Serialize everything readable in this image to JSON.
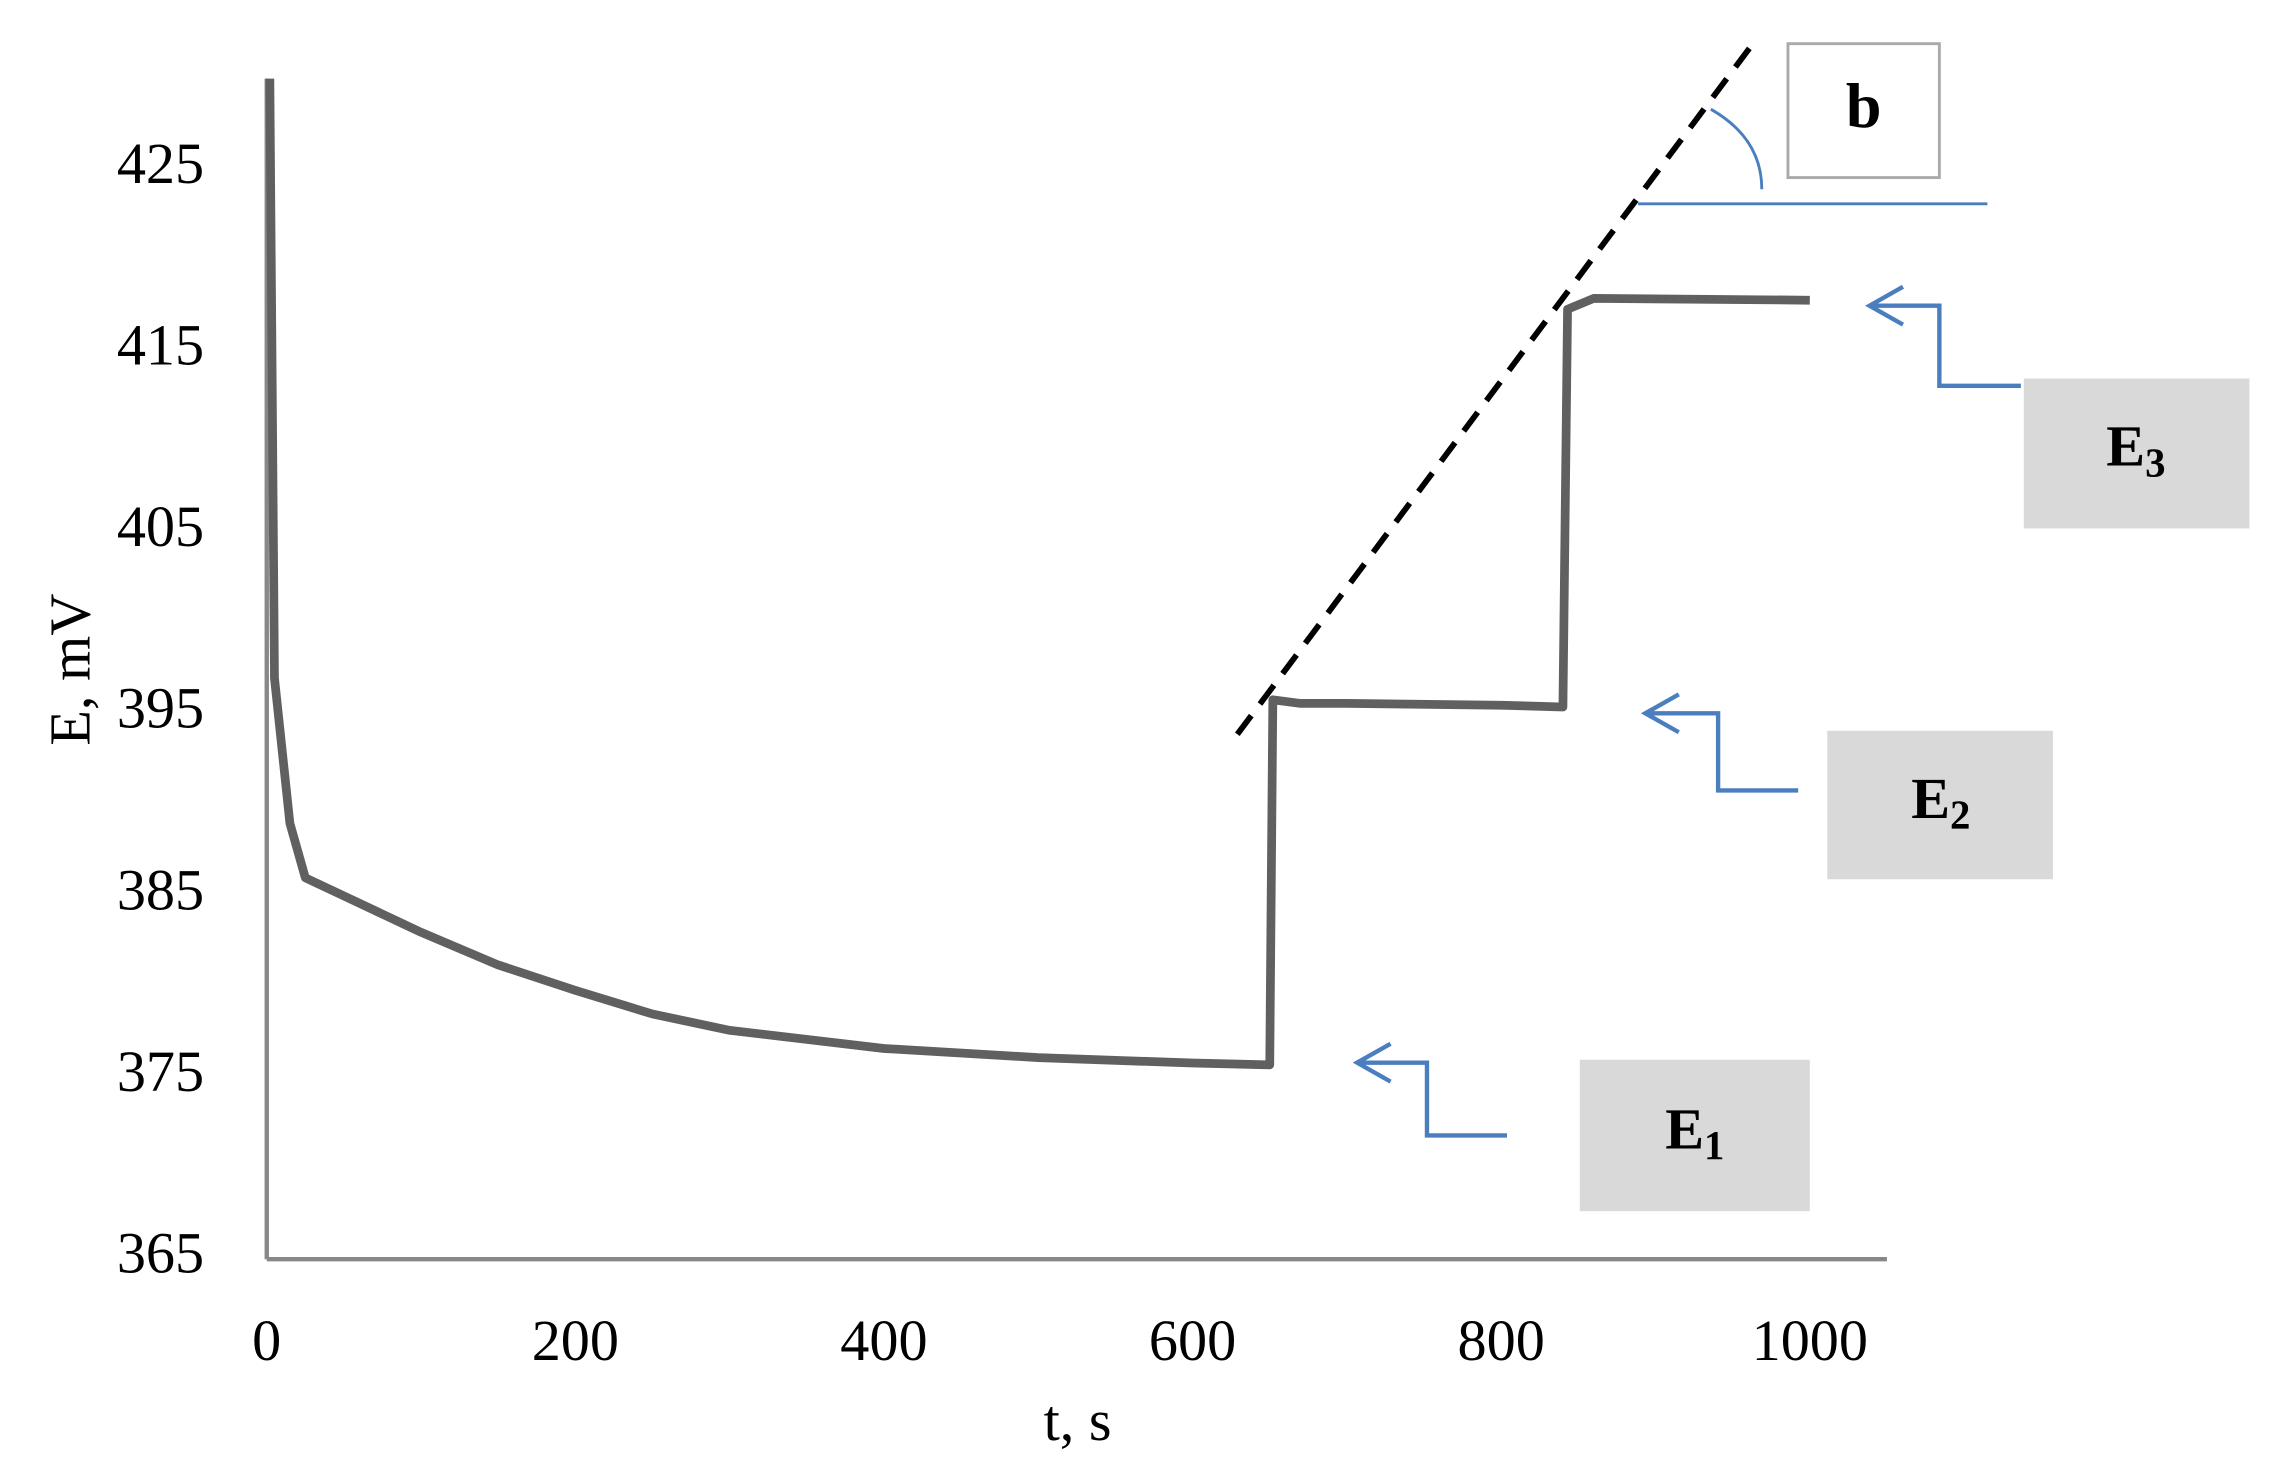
{
  "chart_data": {
    "type": "line",
    "x_label": "t, s",
    "y_label": "E, mV",
    "xlim": [
      0,
      1050
    ],
    "ylim": [
      365,
      430
    ],
    "xticks": [
      0,
      200,
      400,
      600,
      800,
      1000
    ],
    "yticks": [
      365,
      375,
      385,
      395,
      405,
      415,
      425
    ],
    "grid": false,
    "series": [
      {
        "color": "#606060",
        "x": [
          2,
          5,
          15,
          25,
          50,
          100,
          150,
          200,
          250,
          300,
          400,
          500,
          600,
          650,
          652,
          670,
          700,
          800,
          840,
          843,
          860,
          1000
        ],
        "values": [
          430,
          397,
          389,
          386,
          385,
          383,
          381.2,
          379.8,
          378.5,
          377.6,
          376.6,
          376.1,
          375.8,
          375.7,
          395.8,
          395.6,
          395.6,
          395.5,
          395.4,
          417.3,
          417.9,
          417.8
        ]
      }
    ],
    "tangent": {
      "color": "#000000",
      "x": [
        629,
        962
      ],
      "y": [
        393.9,
        431.8
      ]
    },
    "annotations": [
      {
        "label": "E",
        "subscript": "1"
      },
      {
        "label": "E",
        "subscript": "2"
      },
      {
        "label": "E",
        "subscript": "3"
      },
      {
        "label": "b"
      }
    ]
  }
}
